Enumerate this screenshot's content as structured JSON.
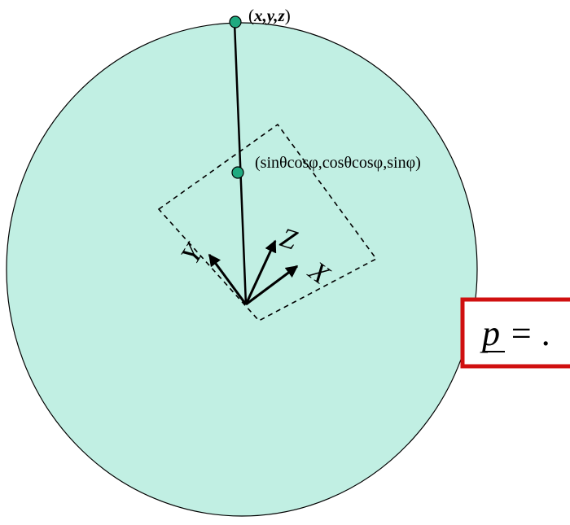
{
  "labels": {
    "top_point_open": "(",
    "top_point_coords": "x,y,z",
    "top_point_close": ")",
    "mid_point": "(sinθcosφ,cosθcosφ,sinφ)",
    "axis_x": "X",
    "axis_y": "Y",
    "axis_z": "Z",
    "formula": "p = ."
  },
  "colors": {
    "sphere_fill": "#c1efe3",
    "point_fill": "#1faa80",
    "formula_box": "#d01010"
  }
}
